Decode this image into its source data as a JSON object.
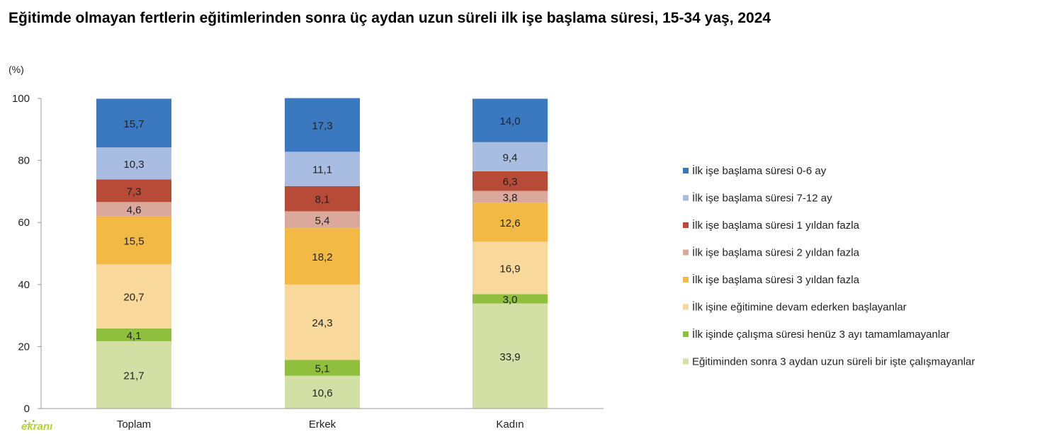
{
  "title": "Eğitimde olmayan fertlerin eğitimlerinden sonra üç aydan uzun süreli ilk işe başlama süresi, 15-34 yaş, 2024",
  "watermark": "ekranı",
  "chart_data": {
    "type": "bar",
    "stacked": true,
    "title": "Eğitimde olmayan fertlerin eğitimlerinden sonra üç aydan uzun süreli ilk işe başlama süresi, 15-34 yaş, 2024",
    "ylabel": "(%)",
    "xlabel": "",
    "ylim": [
      0,
      100
    ],
    "yticks": [
      "0",
      "20",
      "40",
      "60",
      "80",
      "100"
    ],
    "categories": [
      "Toplam",
      "Erkek",
      "Kadın"
    ],
    "legend_position": "right",
    "series": [
      {
        "name": "Eğitiminden sonra 3 aydan uzun süreli bir işte çalışmayanlar",
        "color": "#d3e0a5",
        "values": [
          21.7,
          10.6,
          33.9
        ],
        "labels": [
          "21,7",
          "10,6",
          "33,9"
        ]
      },
      {
        "name": "İlk işinde çalışma süresi henüz 3 ayı tamamlamayanlar",
        "color": "#8fbf3c",
        "values": [
          4.1,
          5.1,
          3.0
        ],
        "labels": [
          "4,1",
          "5,1",
          "3,0"
        ]
      },
      {
        "name": "İlk işine eğitimine devam ederken başlayanlar",
        "color": "#f8d99b",
        "values": [
          20.7,
          24.3,
          16.9
        ],
        "labels": [
          "20,7",
          "24,3",
          "16,9"
        ]
      },
      {
        "name": "İlk işe başlama süresi 3 yıldan fazla",
        "color": "#f2ba45",
        "values": [
          15.5,
          18.2,
          12.6
        ],
        "labels": [
          "15,5",
          "18,2",
          "12,6"
        ]
      },
      {
        "name": "İlk işe başlama süresi 2 yıldan fazla",
        "color": "#dba99c",
        "values": [
          4.6,
          5.4,
          3.8
        ],
        "labels": [
          "4,6",
          "5,4",
          "3,8"
        ]
      },
      {
        "name": "İlk işe başlama süresi 1 yıldan fazla",
        "color": "#b84a38",
        "values": [
          7.3,
          8.1,
          6.3
        ],
        "labels": [
          "7,3",
          "8,1",
          "6,3"
        ]
      },
      {
        "name": "İlk işe başlama süresi 7-12 ay",
        "color": "#a9bde2",
        "values": [
          10.3,
          11.1,
          9.4
        ],
        "labels": [
          "10,3",
          "11,1",
          "9,4"
        ]
      },
      {
        "name": "İlk işe başlama süresi 0-6 ay",
        "color": "#3a78c0",
        "values": [
          15.7,
          17.3,
          14.0
        ],
        "labels": [
          "15,7",
          "17,3",
          "14,0"
        ]
      }
    ],
    "legend_order": [
      7,
      6,
      5,
      4,
      3,
      2,
      1,
      0
    ]
  }
}
